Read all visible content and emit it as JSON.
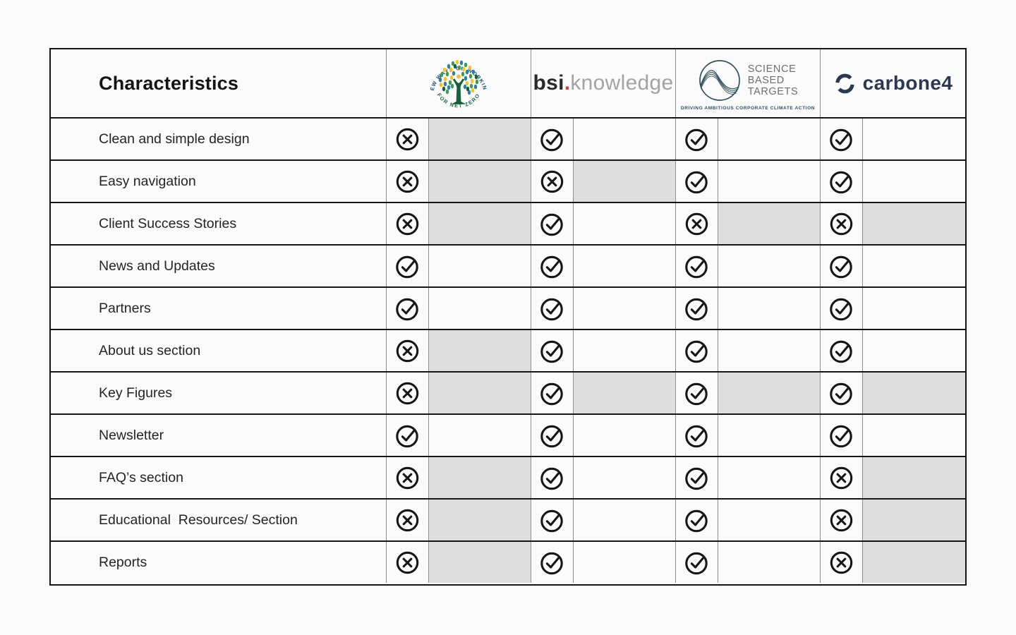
{
  "table": {
    "title": "Characteristics",
    "columns": [
      {
        "name": "New Ways of Working for Net Zero",
        "arc_top": "NEW WAYS OF WORKING",
        "arc_bottom": "FOR NET ZERO"
      },
      {
        "name": "bsi.knowledge",
        "word_bold": "bsi",
        "word_dot": ".",
        "word_rest": "knowledge"
      },
      {
        "name": "Science Based Targets",
        "line1": "SCIENCE",
        "line2": "BASED",
        "line3": "TARGETS",
        "tagline": "DRIVING AMBITIOUS CORPORATE CLIMATE ACTION"
      },
      {
        "name": "carbone4",
        "wordmark": "carbone4"
      }
    ],
    "rows": [
      {
        "label": "Clean and simple design",
        "cells": [
          {
            "mark": "cross",
            "shaded": true
          },
          {
            "mark": "check",
            "shaded": false
          },
          {
            "mark": "check",
            "shaded": false
          },
          {
            "mark": "check",
            "shaded": false
          }
        ]
      },
      {
        "label": "Easy navigation",
        "cells": [
          {
            "mark": "cross",
            "shaded": true
          },
          {
            "mark": "cross",
            "shaded": true
          },
          {
            "mark": "check",
            "shaded": false
          },
          {
            "mark": "check",
            "shaded": false
          }
        ]
      },
      {
        "label": "Client Success Stories",
        "cells": [
          {
            "mark": "cross",
            "shaded": true
          },
          {
            "mark": "check",
            "shaded": false
          },
          {
            "mark": "cross",
            "shaded": true
          },
          {
            "mark": "cross",
            "shaded": true
          }
        ]
      },
      {
        "label": "News and Updates",
        "cells": [
          {
            "mark": "check",
            "shaded": false
          },
          {
            "mark": "check",
            "shaded": false
          },
          {
            "mark": "check",
            "shaded": false
          },
          {
            "mark": "check",
            "shaded": false
          }
        ]
      },
      {
        "label": "Partners",
        "cells": [
          {
            "mark": "check",
            "shaded": false
          },
          {
            "mark": "check",
            "shaded": false
          },
          {
            "mark": "check",
            "shaded": false
          },
          {
            "mark": "check",
            "shaded": false
          }
        ]
      },
      {
        "label": "About us section",
        "cells": [
          {
            "mark": "cross",
            "shaded": true
          },
          {
            "mark": "check",
            "shaded": false
          },
          {
            "mark": "check",
            "shaded": false
          },
          {
            "mark": "check",
            "shaded": false
          }
        ]
      },
      {
        "label": "Key Figures",
        "cells": [
          {
            "mark": "cross",
            "shaded": true
          },
          {
            "mark": "check",
            "shaded": true
          },
          {
            "mark": "check",
            "shaded": true
          },
          {
            "mark": "check",
            "shaded": true
          }
        ]
      },
      {
        "label": "Newsletter",
        "cells": [
          {
            "mark": "check",
            "shaded": false
          },
          {
            "mark": "check",
            "shaded": false
          },
          {
            "mark": "check",
            "shaded": false
          },
          {
            "mark": "check",
            "shaded": false
          }
        ]
      },
      {
        "label": "FAQ’s section",
        "cells": [
          {
            "mark": "cross",
            "shaded": true
          },
          {
            "mark": "check",
            "shaded": false
          },
          {
            "mark": "check",
            "shaded": false
          },
          {
            "mark": "cross",
            "shaded": true
          }
        ]
      },
      {
        "label": "Educational  Resources/ Section",
        "cells": [
          {
            "mark": "cross",
            "shaded": true
          },
          {
            "mark": "check",
            "shaded": false
          },
          {
            "mark": "check",
            "shaded": false
          },
          {
            "mark": "cross",
            "shaded": true
          }
        ]
      },
      {
        "label": "Reports",
        "cells": [
          {
            "mark": "cross",
            "shaded": true
          },
          {
            "mark": "check",
            "shaded": false
          },
          {
            "mark": "check",
            "shaded": false
          },
          {
            "mark": "cross",
            "shaded": true
          }
        ]
      }
    ]
  },
  "colors": {
    "shaded_cell": "#dedede",
    "heavy_border": "#161616",
    "thin_divider": "#8f8f8f",
    "mark_stroke": "#161616",
    "netzero_blue": "#1d4e7a",
    "netzero_green": "#1a6b3c",
    "netzero_leaf_green": "#3f9b4f",
    "netzero_teal": "#2e7fa0",
    "netzero_yellow": "#f2c230",
    "bsi_dark": "#2b2b2b",
    "bsi_red": "#e23a2e",
    "bsi_gray": "#a3a3a3",
    "sbt_navy": "#32505c",
    "sbt_gray": "#6e6e6e",
    "carbone_navy": "#2b3950"
  }
}
